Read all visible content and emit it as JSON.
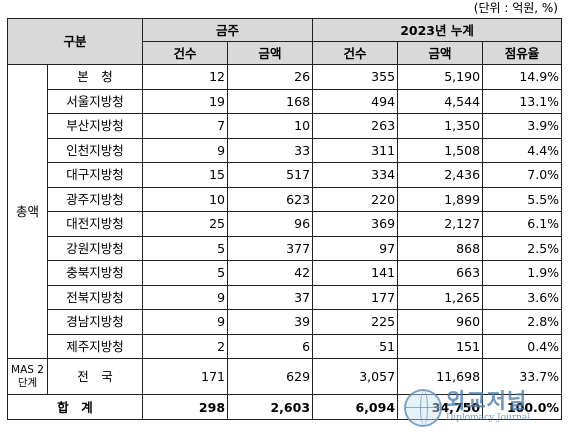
{
  "unit_note": "(단위 : 억원, %)",
  "header": {
    "category": "구분",
    "weekly": "금주",
    "cumulative": "2023년 누계",
    "count": "건수",
    "amount": "금액",
    "share": "점유율"
  },
  "group_label": "총액",
  "rows": [
    {
      "name": "본　청",
      "w_count": "12",
      "w_amount": "26",
      "c_count": "355",
      "c_amount": "5,190",
      "share": "14.9%"
    },
    {
      "name": "서울지방청",
      "w_count": "19",
      "w_amount": "168",
      "c_count": "494",
      "c_amount": "4,544",
      "share": "13.1%"
    },
    {
      "name": "부산지방청",
      "w_count": "7",
      "w_amount": "10",
      "c_count": "263",
      "c_amount": "1,350",
      "share": "3.9%"
    },
    {
      "name": "인천지방청",
      "w_count": "9",
      "w_amount": "33",
      "c_count": "311",
      "c_amount": "1,508",
      "share": "4.4%"
    },
    {
      "name": "대구지방청",
      "w_count": "15",
      "w_amount": "517",
      "c_count": "334",
      "c_amount": "2,436",
      "share": "7.0%"
    },
    {
      "name": "광주지방청",
      "w_count": "10",
      "w_amount": "623",
      "c_count": "220",
      "c_amount": "1,899",
      "share": "5.5%"
    },
    {
      "name": "대전지방청",
      "w_count": "25",
      "w_amount": "96",
      "c_count": "369",
      "c_amount": "2,127",
      "share": "6.1%"
    },
    {
      "name": "강원지방청",
      "w_count": "5",
      "w_amount": "377",
      "c_count": "97",
      "c_amount": "868",
      "share": "2.5%"
    },
    {
      "name": "충북지방청",
      "w_count": "5",
      "w_amount": "42",
      "c_count": "141",
      "c_amount": "663",
      "share": "1.9%"
    },
    {
      "name": "전북지방청",
      "w_count": "9",
      "w_amount": "37",
      "c_count": "177",
      "c_amount": "1,265",
      "share": "3.6%"
    },
    {
      "name": "경남지방청",
      "w_count": "9",
      "w_amount": "39",
      "c_count": "225",
      "c_amount": "960",
      "share": "2.8%"
    },
    {
      "name": "제주지방청",
      "w_count": "2",
      "w_amount": "6",
      "c_count": "51",
      "c_amount": "151",
      "share": "0.4%"
    }
  ],
  "mas_row": {
    "label": "MAS 2단계",
    "name": "전　국",
    "w_count": "171",
    "w_amount": "629",
    "c_count": "3,057",
    "c_amount": "11,698",
    "share": "33.7%"
  },
  "total_row": {
    "label": "합　계",
    "w_count": "298",
    "w_amount": "2,603",
    "c_count": "6,094",
    "c_amount": "34,750",
    "share": "100.0%"
  },
  "watermark": {
    "title": "외교저널",
    "subtitle": "Diplomacy Journal"
  }
}
